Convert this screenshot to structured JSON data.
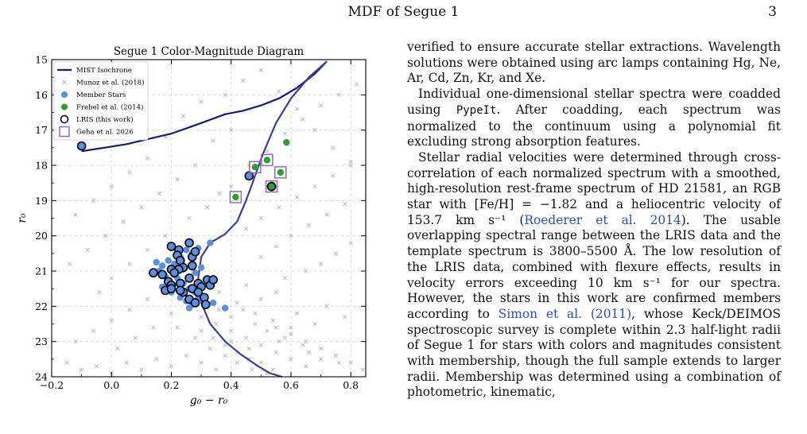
{
  "header": {
    "running_title": "MDF of Segue 1",
    "page_number": "3"
  },
  "figure": {
    "title": "Segue 1 Color-Magnitude Diagram",
    "xlabel": "g₀ − r₀",
    "ylabel": "r₀",
    "xticks": [
      "−0.2",
      "0.0",
      "0.2",
      "0.4",
      "0.6",
      "0.8"
    ],
    "yticks": [
      "15",
      "16",
      "17",
      "18",
      "19",
      "20",
      "21",
      "22",
      "23",
      "24"
    ],
    "legend": [
      {
        "label": "MIST Isochrone",
        "marker": "line",
        "color": "#1a1a7a"
      },
      {
        "label": "Munoz et al. (2018)",
        "marker": "x",
        "color": "#b5b5b5"
      },
      {
        "label": "Member Stars",
        "marker": "dot",
        "color": "#5b8fe0"
      },
      {
        "label": "Frebel et al. (2014)",
        "marker": "dot",
        "color": "#2ca02c"
      },
      {
        "label": "LRIS (this work)",
        "marker": "ring",
        "color": "#000000"
      },
      {
        "label": "Geha et al. 2026",
        "marker": "square",
        "color": "#9467bd"
      }
    ]
  },
  "chart_data": {
    "type": "scatter",
    "title": "Segue 1 Color-Magnitude Diagram",
    "xlabel": "g₀ − r₀",
    "ylabel": "r₀",
    "xlim": [
      -0.2,
      0.85
    ],
    "ylim": [
      24,
      15
    ],
    "y_inverted": true,
    "grid": true,
    "legend_position": "top-left",
    "series": [
      {
        "name": "MIST Isochrone",
        "kind": "line",
        "color": "#1a1a7a",
        "x": [
          -0.1,
          0.05,
          0.2,
          0.3,
          0.38,
          0.44,
          0.5,
          0.56,
          0.62,
          0.68,
          0.72
        ],
        "y": [
          17.6,
          17.4,
          17.1,
          16.8,
          16.55,
          16.45,
          16.3,
          16.1,
          15.8,
          15.4,
          15.05
        ]
      },
      {
        "name": "MIST Isochrone",
        "kind": "line",
        "color": "#3d3d9e",
        "x": [
          0.72,
          0.66,
          0.6,
          0.55,
          0.51,
          0.48,
          0.45,
          0.42,
          0.38,
          0.33,
          0.3,
          0.29,
          0.3,
          0.33,
          0.38,
          0.43,
          0.49,
          0.53,
          0.57
        ],
        "y": [
          15.05,
          15.5,
          16.1,
          16.8,
          17.6,
          18.3,
          19.0,
          19.6,
          19.95,
          20.2,
          20.6,
          21.2,
          21.9,
          22.5,
          23.0,
          23.35,
          23.7,
          23.9,
          24.0
        ]
      },
      {
        "name": "Munoz et al. (2018)",
        "kind": "x",
        "color": "#b8b8b8",
        "points": [
          [
            0.3,
            22.3
          ],
          [
            0.35,
            22.5
          ],
          [
            0.4,
            22.7
          ],
          [
            0.45,
            22.9
          ],
          [
            0.5,
            23.1
          ],
          [
            0.55,
            23.3
          ],
          [
            0.6,
            23.5
          ],
          [
            0.65,
            23.7
          ],
          [
            0.28,
            22.9
          ],
          [
            0.33,
            23.2
          ],
          [
            0.38,
            23.4
          ],
          [
            0.42,
            23.6
          ],
          [
            0.47,
            23.8
          ],
          [
            0.52,
            23.9
          ],
          [
            0.25,
            23.4
          ],
          [
            0.3,
            23.6
          ],
          [
            0.35,
            23.8
          ],
          [
            0.2,
            23.7
          ],
          [
            0.15,
            23.5
          ],
          [
            0.1,
            23.8
          ],
          [
            0.05,
            23.6
          ],
          [
            0.0,
            23.9
          ],
          [
            -0.05,
            23.7
          ],
          [
            -0.1,
            23.8
          ],
          [
            -0.15,
            23.6
          ],
          [
            0.55,
            22.6
          ],
          [
            0.6,
            22.8
          ],
          [
            0.65,
            23.0
          ],
          [
            0.7,
            23.2
          ],
          [
            0.75,
            23.4
          ],
          [
            0.8,
            23.6
          ],
          [
            0.62,
            22.2
          ],
          [
            0.68,
            22.5
          ],
          [
            0.72,
            22.0
          ],
          [
            0.78,
            22.3
          ],
          [
            0.5,
            21.8
          ],
          [
            0.55,
            21.6
          ],
          [
            0.45,
            21.4
          ],
          [
            0.58,
            21.2
          ],
          [
            0.65,
            21.0
          ],
          [
            0.7,
            20.8
          ],
          [
            0.75,
            20.5
          ],
          [
            0.8,
            20.2
          ],
          [
            0.5,
            20.6
          ],
          [
            0.55,
            20.3
          ],
          [
            0.6,
            20.0
          ],
          [
            0.66,
            19.7
          ],
          [
            0.72,
            19.4
          ],
          [
            0.78,
            19.1
          ],
          [
            0.45,
            19.8
          ],
          [
            0.5,
            19.5
          ],
          [
            0.56,
            19.2
          ],
          [
            0.62,
            18.9
          ],
          [
            0.68,
            18.6
          ],
          [
            0.74,
            18.3
          ],
          [
            0.8,
            18.0
          ],
          [
            0.4,
            18.6
          ],
          [
            0.46,
            18.0
          ],
          [
            0.52,
            17.6
          ],
          [
            0.58,
            17.1
          ],
          [
            0.64,
            16.7
          ],
          [
            0.7,
            16.3
          ],
          [
            0.76,
            16.0
          ],
          [
            0.82,
            15.7
          ],
          [
            0.34,
            17.3
          ],
          [
            0.4,
            17.0
          ],
          [
            0.28,
            18.0
          ],
          [
            0.22,
            18.4
          ],
          [
            0.16,
            18.8
          ],
          [
            0.1,
            19.2
          ],
          [
            0.04,
            19.6
          ],
          [
            -0.02,
            20.0
          ],
          [
            -0.08,
            20.4
          ],
          [
            -0.14,
            20.8
          ],
          [
            0.12,
            21.8
          ],
          [
            0.06,
            22.1
          ],
          [
            0.0,
            22.4
          ],
          [
            -0.06,
            22.7
          ],
          [
            -0.12,
            23.0
          ],
          [
            0.2,
            22.2
          ],
          [
            0.14,
            22.6
          ],
          [
            0.08,
            22.9
          ],
          [
            0.02,
            23.2
          ],
          [
            0.36,
            21.6
          ],
          [
            0.42,
            21.9
          ],
          [
            0.48,
            22.2
          ],
          [
            0.54,
            22.4
          ],
          [
            0.6,
            22.6
          ],
          [
            0.24,
            16.6
          ],
          [
            0.3,
            16.2
          ],
          [
            0.18,
            17.2
          ],
          [
            0.12,
            17.8
          ],
          [
            0.06,
            18.2
          ],
          [
            0.0,
            18.6
          ],
          [
            -0.06,
            19.0
          ],
          [
            -0.12,
            19.4
          ],
          [
            0.44,
            15.6
          ],
          [
            0.5,
            15.3
          ],
          [
            0.38,
            16.0
          ],
          [
            0.56,
            15.9
          ],
          [
            0.62,
            16.4
          ],
          [
            0.68,
            17.0
          ],
          [
            0.74,
            17.5
          ],
          [
            0.8,
            17.9
          ],
          [
            0.26,
            19.5
          ],
          [
            0.32,
            19.2
          ],
          [
            0.36,
            18.8
          ],
          [
            0.18,
            20.0
          ],
          [
            0.12,
            20.4
          ],
          [
            0.06,
            20.8
          ],
          [
            0.0,
            21.2
          ],
          [
            -0.04,
            21.6
          ],
          [
            0.4,
            23.0
          ],
          [
            0.46,
            23.2
          ],
          [
            0.56,
            23.0
          ],
          [
            0.66,
            23.3
          ],
          [
            0.76,
            23.6
          ],
          [
            0.84,
            23.8
          ],
          [
            0.22,
            22.6
          ],
          [
            0.26,
            22.0
          ],
          [
            0.32,
            21.9
          ],
          [
            0.36,
            22.1
          ],
          [
            0.4,
            22.3
          ],
          [
            0.44,
            22.1
          ],
          [
            0.48,
            22.5
          ],
          [
            0.52,
            22.7
          ],
          [
            0.58,
            22.9
          ],
          [
            0.64,
            23.1
          ],
          [
            0.7,
            23.5
          ],
          [
            0.3,
            22.7
          ],
          [
            0.34,
            22.9
          ],
          [
            0.38,
            23.1
          ],
          [
            0.42,
            23.3
          ],
          [
            0.46,
            23.5
          ],
          [
            0.5,
            23.6
          ],
          [
            0.54,
            23.8
          ]
        ]
      },
      {
        "name": "Member Stars",
        "kind": "dot",
        "color": "#5b8fe0",
        "points": [
          [
            0.15,
            20.75
          ],
          [
            0.17,
            20.85
          ],
          [
            0.19,
            20.7
          ],
          [
            0.21,
            20.8
          ],
          [
            0.23,
            20.6
          ],
          [
            0.25,
            20.4
          ],
          [
            0.27,
            20.5
          ],
          [
            0.29,
            20.35
          ],
          [
            0.33,
            20.2
          ],
          [
            0.16,
            21.0
          ],
          [
            0.18,
            21.15
          ],
          [
            0.22,
            21.2
          ],
          [
            0.24,
            21.35
          ],
          [
            0.26,
            21.5
          ],
          [
            0.28,
            21.6
          ],
          [
            0.3,
            21.45
          ],
          [
            0.32,
            21.3
          ],
          [
            0.17,
            21.45
          ],
          [
            0.2,
            21.6
          ],
          [
            0.23,
            21.75
          ],
          [
            0.25,
            21.85
          ],
          [
            0.27,
            21.95
          ],
          [
            0.29,
            21.75
          ],
          [
            0.34,
            21.9
          ],
          [
            0.26,
            22.05
          ],
          [
            0.38,
            22.05
          ],
          [
            0.31,
            21.85
          ],
          [
            0.21,
            21.1
          ],
          [
            0.24,
            20.95
          ],
          [
            0.28,
            21.05
          ],
          [
            0.3,
            20.9
          ]
        ]
      },
      {
        "name": "LRIS (this work)",
        "kind": "ring",
        "color": "#000000",
        "points": [
          [
            -0.1,
            17.45
          ],
          [
            0.46,
            18.3
          ],
          [
            0.535,
            18.6
          ],
          [
            0.2,
            20.3
          ],
          [
            0.225,
            20.4
          ],
          [
            0.26,
            20.2
          ],
          [
            0.22,
            20.55
          ],
          [
            0.23,
            20.7
          ],
          [
            0.27,
            20.6
          ],
          [
            0.28,
            20.45
          ],
          [
            0.24,
            20.9
          ],
          [
            0.2,
            20.95
          ],
          [
            0.225,
            20.95
          ],
          [
            0.27,
            20.85
          ],
          [
            0.21,
            21.05
          ],
          [
            0.17,
            21.1
          ],
          [
            0.14,
            21.05
          ],
          [
            0.19,
            21.3
          ],
          [
            0.2,
            21.4
          ],
          [
            0.23,
            21.35
          ],
          [
            0.26,
            21.2
          ],
          [
            0.29,
            21.35
          ],
          [
            0.3,
            21.45
          ],
          [
            0.32,
            21.25
          ],
          [
            0.33,
            21.4
          ],
          [
            0.34,
            21.25
          ],
          [
            0.18,
            21.55
          ],
          [
            0.2,
            21.5
          ],
          [
            0.24,
            21.6
          ],
          [
            0.27,
            21.5
          ],
          [
            0.29,
            21.6
          ],
          [
            0.31,
            21.75
          ],
          [
            0.26,
            21.8
          ],
          [
            0.28,
            21.9
          ],
          [
            0.23,
            21.55
          ],
          [
            0.315,
            21.95
          ]
        ]
      },
      {
        "name": "Frebel et al. (2014)",
        "kind": "dot",
        "color": "#2ca02c",
        "points": [
          [
            0.585,
            17.35
          ],
          [
            0.52,
            17.85
          ],
          [
            0.48,
            18.05
          ],
          [
            0.565,
            18.2
          ],
          [
            0.415,
            18.9
          ],
          [
            0.535,
            18.6
          ]
        ]
      },
      {
        "name": "Geha et al. 2026",
        "kind": "square",
        "color": "#9467bd",
        "points": [
          [
            0.52,
            17.85
          ],
          [
            0.48,
            18.05
          ],
          [
            0.565,
            18.2
          ],
          [
            0.415,
            18.9
          ],
          [
            0.535,
            18.6
          ]
        ]
      }
    ]
  },
  "body": {
    "p1": "verified to ensure accurate stellar extractions. Wavelength solutions were obtained using arc lamps containing Hg, Ne, Ar, Cd, Zn, Kr, and Xe.",
    "p2_a": "Individual one-dimensional stellar spectra were coadded using ",
    "p2_code": "PypeIt",
    "p2_b": ". After coadding, each spectrum was normalized to the continuum using a polynomial fit excluding strong absorption features.",
    "p3_a": "Stellar radial velocities were determined through cross-correlation of each normalized spectrum with a smoothed, high-resolution rest-frame spectrum of HD 21581, an RGB star with [Fe/H] = −1.82 and a heliocentric velocity of 153.7 km s⁻¹ (",
    "p3_cite1": "Roederer et al. 2014",
    "p3_b": "). The usable overlapping spectral range between the LRIS data and the template spectrum is 3800–5500 Å. The low resolution of the LRIS data, combined with flexure effects, results in velocity errors exceeding 10 km s⁻¹ for our spectra. However, the stars in this work are confirmed members according to ",
    "p3_cite2": "Simon et al. (2011)",
    "p3_c": ", whose Keck/DEIMOS spectroscopic survey is complete within 2.3 half-light radii of Segue 1 for stars with colors and magnitudes consistent with membership, though the full sample extends to larger radii. Membership was determined using a combination of photometric, kinematic,"
  }
}
